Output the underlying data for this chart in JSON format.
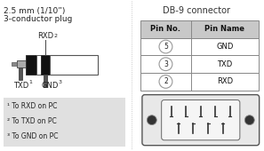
{
  "bg_color": "#ffffff",
  "left_title_line1": "2.5 mm (1/10”)",
  "left_title_line2": "3-conductor plug",
  "right_title": "DB-9 connector",
  "table_header": [
    "Pin No.",
    "Pin Name"
  ],
  "table_rows": [
    [
      "5",
      "GND"
    ],
    [
      "3",
      "TXD"
    ],
    [
      "2",
      "RXD"
    ]
  ],
  "footnotes": [
    "¹ To RXD on PC",
    "² To TXD on PC",
    "³ To GND on PC"
  ],
  "font_size_title": 6.5,
  "font_size_body": 6.0,
  "font_size_footnote": 5.5,
  "divider_color": "#aaaaaa",
  "table_header_bg": "#c8c8c8",
  "table_row_bg": "#ffffff",
  "table_border": "#888888",
  "footnote_bg": "#e0e0e0",
  "connector_bg": "#e8e8e8",
  "connector_inner_bg": "#f5f5f5"
}
